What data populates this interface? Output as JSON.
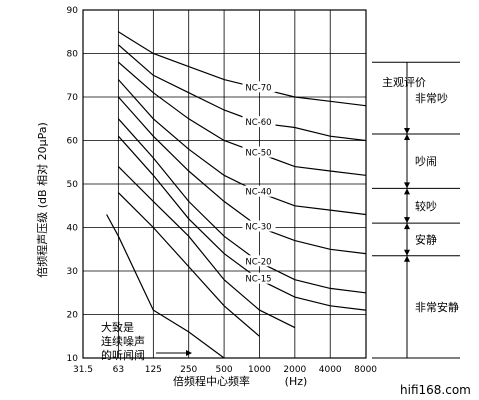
{
  "chart_data": {
    "type": "line",
    "xlabel": "倍频程中心频率",
    "xunit": "(Hz)",
    "ylabel": "倍频程声压级 (dB 相对 20μPa)",
    "x_ticks": [
      "31.5",
      "63",
      "125",
      "250",
      "500",
      "1000",
      "2000",
      "4000",
      "8000"
    ],
    "y_ticks": [
      10,
      20,
      30,
      40,
      50,
      60,
      70,
      80,
      90
    ],
    "ylim": [
      10,
      90
    ],
    "x_scale": "log-octave",
    "grid": true,
    "series": [
      {
        "name": "NC-70",
        "x": [
          63,
          125,
          250,
          500,
          1000,
          2000,
          4000,
          8000
        ],
        "y": [
          85,
          80,
          77,
          74,
          72,
          70,
          69,
          68
        ]
      },
      {
        "name": "NC-60",
        "x": [
          63,
          125,
          250,
          500,
          1000,
          2000,
          4000,
          8000
        ],
        "y": [
          82,
          75,
          71,
          67,
          64,
          63,
          61,
          60
        ]
      },
      {
        "name": "NC-50",
        "x": [
          63,
          125,
          250,
          500,
          1000,
          2000,
          4000,
          8000
        ],
        "y": [
          78,
          71,
          65,
          60,
          57,
          54,
          53,
          52
        ]
      },
      {
        "name": "NC-40",
        "x": [
          63,
          125,
          250,
          500,
          1000,
          2000,
          4000,
          8000
        ],
        "y": [
          74,
          65,
          58,
          52,
          48,
          45,
          44,
          43
        ]
      },
      {
        "name": "NC-30",
        "x": [
          63,
          125,
          250,
          500,
          1000,
          2000,
          4000,
          8000
        ],
        "y": [
          70,
          61,
          53,
          46,
          40,
          37,
          35,
          34
        ]
      },
      {
        "name": "NC-20",
        "x": [
          63,
          125,
          250,
          500,
          1000,
          2000,
          4000,
          8000
        ],
        "y": [
          65,
          56,
          46,
          38,
          32,
          28,
          26,
          25
        ]
      },
      {
        "name": "NC-15",
        "x": [
          63,
          125,
          250,
          500,
          1000,
          2000,
          4000,
          8000
        ],
        "y": [
          61,
          52,
          42,
          34,
          28,
          24,
          22,
          21
        ]
      },
      {
        "name": "大致是连续噪声的听闻阈",
        "x": [
          63,
          125,
          250,
          500,
          1000,
          2000
        ],
        "y": [
          54,
          46,
          38,
          28,
          21,
          17
        ]
      },
      {
        "name": "",
        "x": [
          63,
          125,
          250,
          500,
          1000
        ],
        "y": [
          48,
          40,
          31,
          22,
          15
        ]
      },
      {
        "name": "",
        "x": [
          50,
          63,
          125,
          250,
          500
        ],
        "y": [
          43,
          38,
          21,
          16,
          10
        ]
      }
    ],
    "subjective_evaluation": {
      "title": "主观评价",
      "bands": [
        {
          "label": "非常吵",
          "from": 78,
          "to": 61.5
        },
        {
          "label": "吵闹",
          "from": 61.5,
          "to": 49
        },
        {
          "label": "较吵",
          "from": 49,
          "to": 41
        },
        {
          "label": "安静",
          "from": 41,
          "to": 33.5
        },
        {
          "label": "非常安静",
          "from": 33.5,
          "to": 10
        }
      ]
    },
    "annotation": {
      "lines": [
        "大致是",
        "连续噪声",
        "的听闻阈"
      ]
    }
  },
  "watermark": "hifi168.com"
}
